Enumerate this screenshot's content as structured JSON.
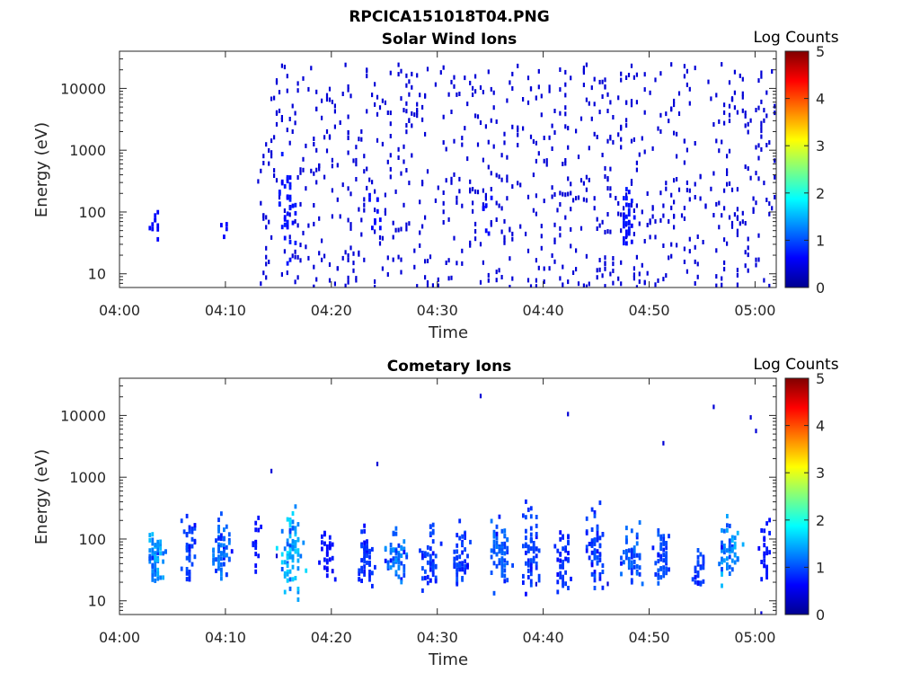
{
  "figure_title": "RPCICA151018T04.PNG",
  "colors": {
    "axis": "#262626",
    "colormap": [
      "#00008f",
      "#0000ff",
      "#0080ff",
      "#00ffff",
      "#80ff80",
      "#ffff00",
      "#ff8000",
      "#ff0000",
      "#800000"
    ]
  },
  "chart_data": [
    {
      "type": "heatmap",
      "title": "Solar Wind Ions",
      "xlabel": "Time",
      "ylabel": "Energy (eV)",
      "colorbar_label": "Log Counts",
      "y_scale": "log",
      "xlim": [
        "04:00",
        "05:02"
      ],
      "ylim": [
        6,
        40000
      ],
      "clim": [
        0,
        5
      ],
      "x_ticks": [
        "04:00",
        "04:10",
        "04:20",
        "04:30",
        "04:40",
        "04:50",
        "05:00"
      ],
      "y_ticks": [
        "10",
        "100",
        "1000",
        "10000"
      ],
      "colorbar_ticks": [
        "0",
        "1",
        "2",
        "3",
        "4",
        "5"
      ],
      "grid": false,
      "clusters": [
        {
          "t": 3.3,
          "e": 50,
          "spread_t": 0.4,
          "spread_e": 0.2,
          "n": 10,
          "level": 0.2
        },
        {
          "t": 9.8,
          "e": 60,
          "spread_t": 0.3,
          "spread_e": 0.15,
          "n": 4,
          "level": 0.2
        },
        {
          "t": 15.9,
          "e": 80,
          "spread_t": 0.6,
          "spread_e": 0.6,
          "n": 40,
          "level": 0.3
        },
        {
          "t": 24.0,
          "e": 80,
          "spread_t": 0.5,
          "spread_e": 0.3,
          "n": 10,
          "level": 0.2
        },
        {
          "t": 34.5,
          "e": 70,
          "spread_t": 0.5,
          "spread_e": 0.3,
          "n": 6,
          "level": 0.2
        },
        {
          "t": 47.8,
          "e": 70,
          "spread_t": 0.5,
          "spread_e": 0.35,
          "n": 30,
          "level": 0.3
        }
      ],
      "background": {
        "t_start": 13.0,
        "t_end": 62.0,
        "e_min": 6,
        "e_max": 25000,
        "n": 900,
        "level": 0.05
      }
    },
    {
      "type": "heatmap",
      "title": "Cometary Ions",
      "xlabel": "Time",
      "ylabel": "Energy (eV)",
      "colorbar_label": "Log Counts",
      "y_scale": "log",
      "xlim": [
        "04:00",
        "05:02"
      ],
      "ylim": [
        6,
        40000
      ],
      "clim": [
        0,
        5
      ],
      "x_ticks": [
        "04:00",
        "04:10",
        "04:20",
        "04:30",
        "04:40",
        "04:50",
        "05:00"
      ],
      "y_ticks": [
        "10",
        "100",
        "1000",
        "10000"
      ],
      "colorbar_ticks": [
        "0",
        "1",
        "2",
        "3",
        "4",
        "5"
      ],
      "grid": false,
      "clusters": [
        {
          "t": 3.3,
          "e": 50,
          "spread_t": 0.6,
          "spread_e": 0.3,
          "n": 60,
          "level": 1.2
        },
        {
          "t": 6.5,
          "e": 70,
          "spread_t": 0.4,
          "spread_e": 0.4,
          "n": 40,
          "level": 0.6
        },
        {
          "t": 9.5,
          "e": 70,
          "spread_t": 0.6,
          "spread_e": 0.35,
          "n": 60,
          "level": 0.9
        },
        {
          "t": 12.8,
          "e": 70,
          "spread_t": 0.3,
          "spread_e": 0.3,
          "n": 15,
          "level": 0.3
        },
        {
          "t": 16.2,
          "e": 60,
          "spread_t": 0.8,
          "spread_e": 0.45,
          "n": 80,
          "level": 1.4
        },
        {
          "t": 19.5,
          "e": 60,
          "spread_t": 0.5,
          "spread_e": 0.3,
          "n": 30,
          "level": 0.3
        },
        {
          "t": 23.2,
          "e": 50,
          "spread_t": 0.6,
          "spread_e": 0.35,
          "n": 45,
          "level": 0.5
        },
        {
          "t": 26.0,
          "e": 50,
          "spread_t": 0.7,
          "spread_e": 0.3,
          "n": 60,
          "level": 1.0
        },
        {
          "t": 29.2,
          "e": 50,
          "spread_t": 0.6,
          "spread_e": 0.35,
          "n": 50,
          "level": 0.6
        },
        {
          "t": 32.2,
          "e": 50,
          "spread_t": 0.6,
          "spread_e": 0.35,
          "n": 50,
          "level": 0.6
        },
        {
          "t": 35.8,
          "e": 60,
          "spread_t": 0.7,
          "spread_e": 0.4,
          "n": 60,
          "level": 0.8
        },
        {
          "t": 38.8,
          "e": 70,
          "spread_t": 0.6,
          "spread_e": 0.5,
          "n": 60,
          "level": 0.6
        },
        {
          "t": 41.8,
          "e": 50,
          "spread_t": 0.5,
          "spread_e": 0.35,
          "n": 40,
          "level": 0.5
        },
        {
          "t": 44.8,
          "e": 70,
          "spread_t": 0.6,
          "spread_e": 0.45,
          "n": 60,
          "level": 0.6
        },
        {
          "t": 48.2,
          "e": 50,
          "spread_t": 0.7,
          "spread_e": 0.35,
          "n": 50,
          "level": 0.8
        },
        {
          "t": 51.2,
          "e": 50,
          "spread_t": 0.6,
          "spread_e": 0.35,
          "n": 50,
          "level": 0.7
        },
        {
          "t": 54.5,
          "e": 40,
          "spread_t": 0.5,
          "spread_e": 0.25,
          "n": 30,
          "level": 0.6
        },
        {
          "t": 57.5,
          "e": 60,
          "spread_t": 0.7,
          "spread_e": 0.35,
          "n": 60,
          "level": 1.2
        },
        {
          "t": 60.8,
          "e": 60,
          "spread_t": 0.4,
          "spread_e": 0.4,
          "n": 25,
          "level": 0.3
        }
      ],
      "background": {
        "t_start": 13.0,
        "t_end": 62.0,
        "e_min": 6,
        "e_max": 30000,
        "n": 12,
        "level": 0.05
      }
    }
  ]
}
